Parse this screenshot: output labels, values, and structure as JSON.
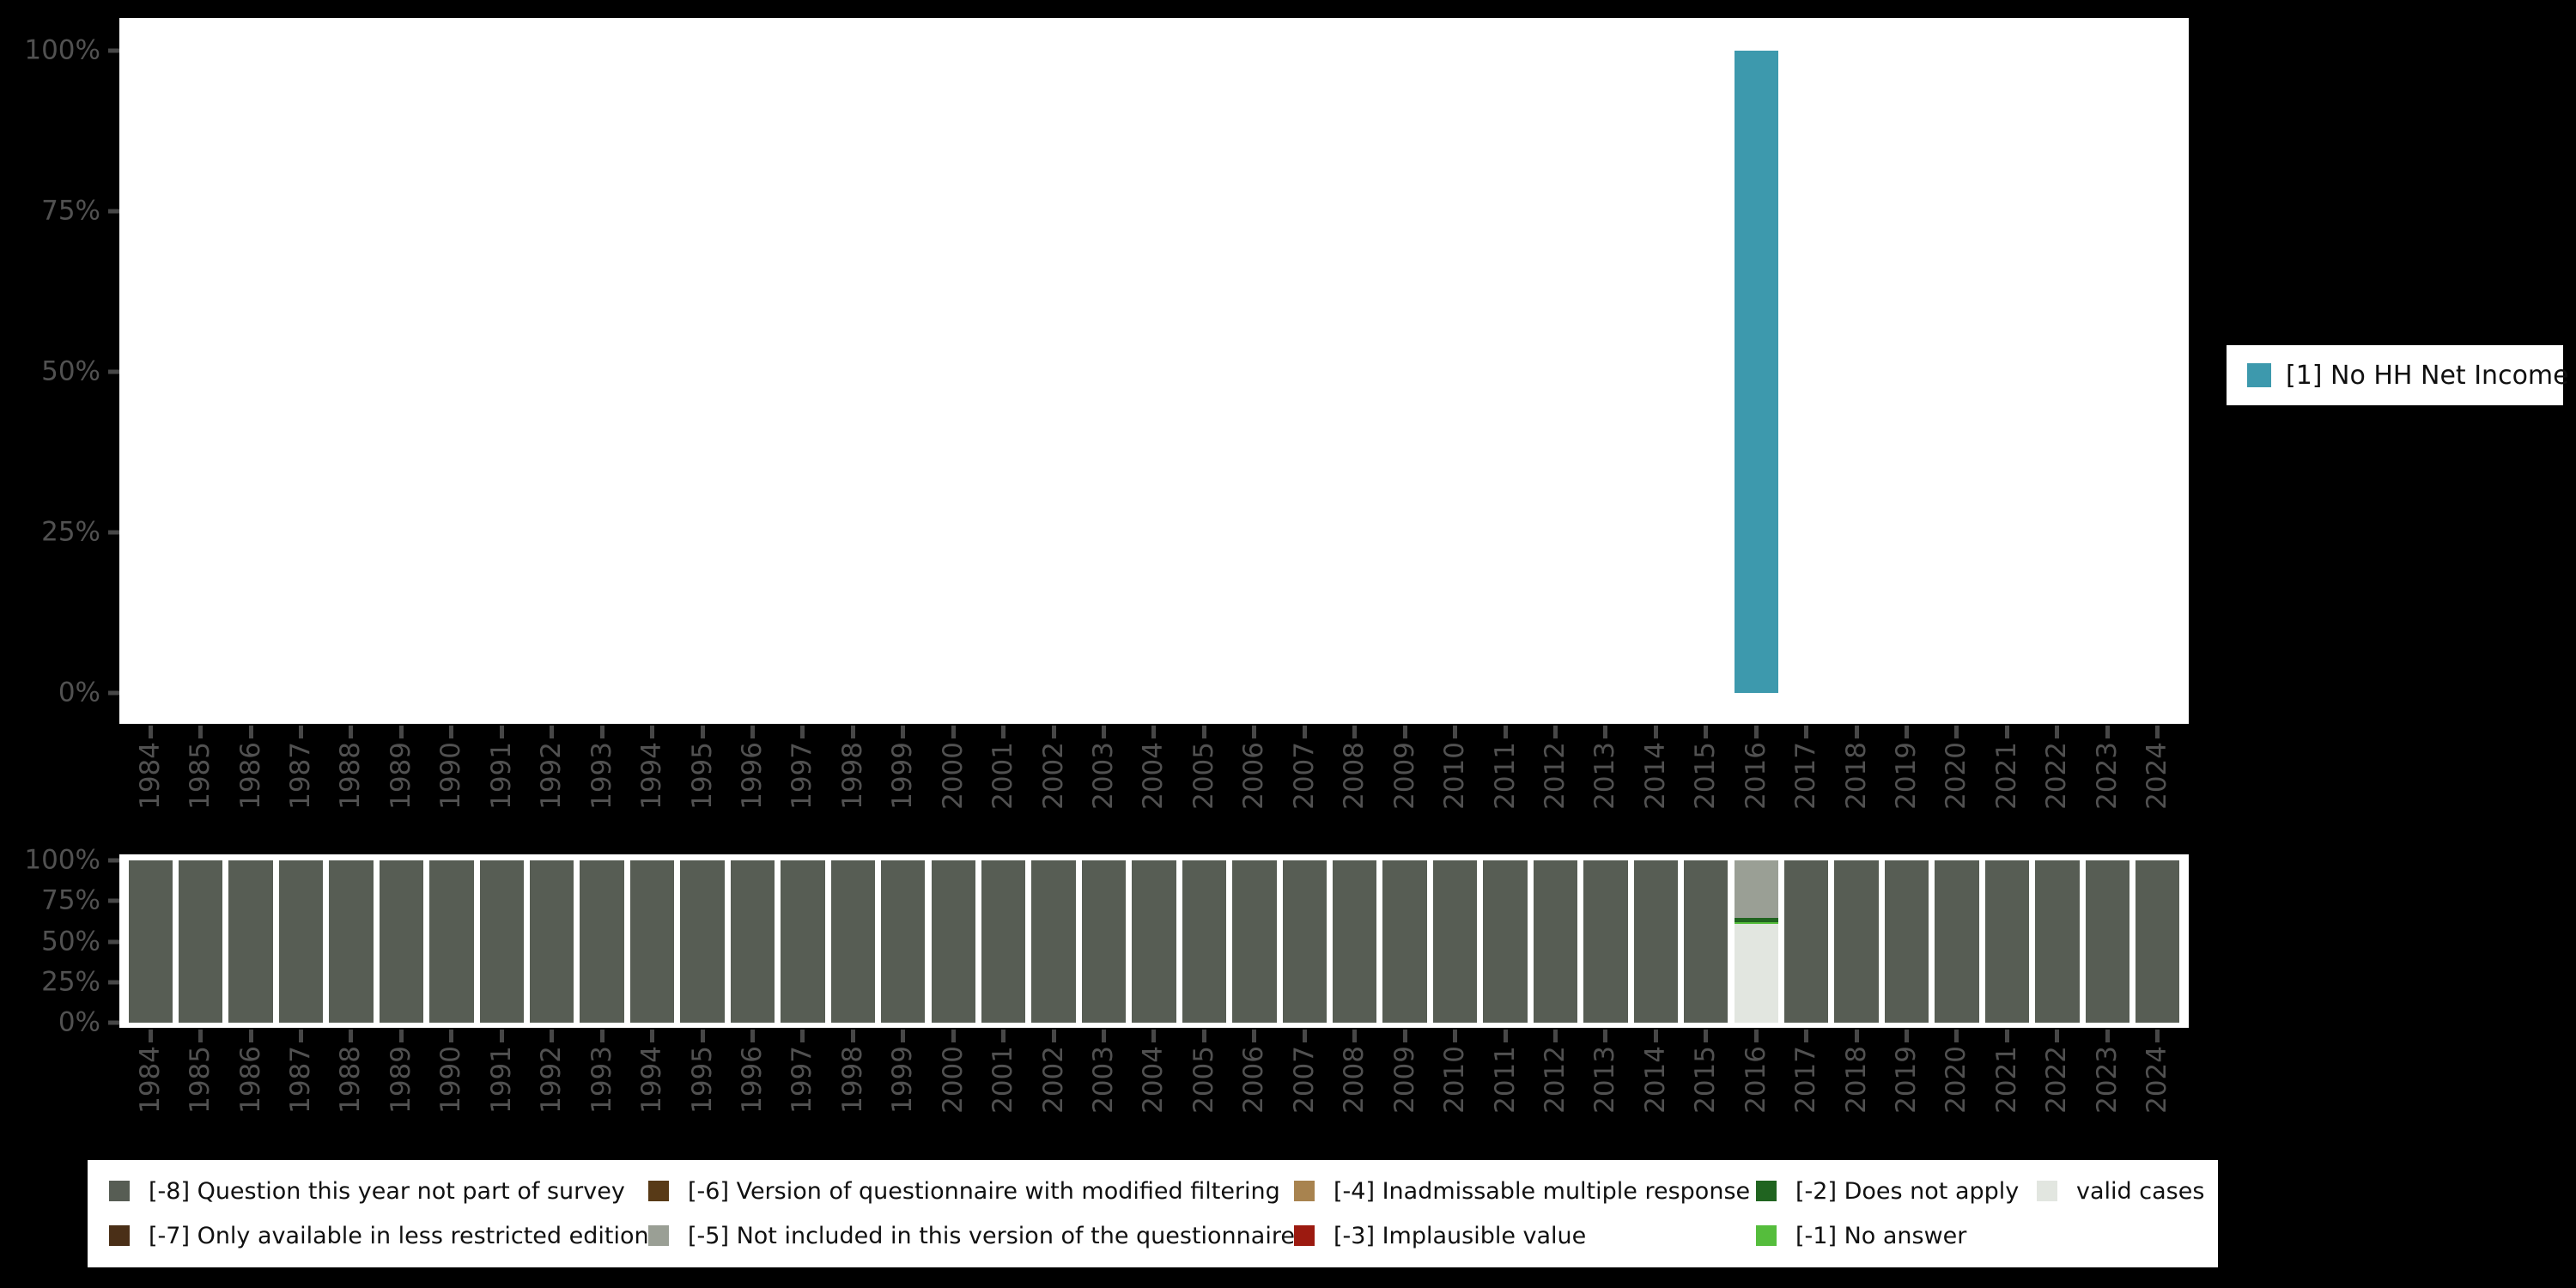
{
  "style": {
    "background": "#000000",
    "plot_background": "#ffffff",
    "axis_text_color": "#515151",
    "tick_mark_color": "#474747",
    "legend_background": "#ffffff",
    "legend_text_color": "#101010"
  },
  "right_legend": {
    "label": "[1] No HH Net Income",
    "color": "#3d99ad"
  },
  "missing_legend": {
    "rows": [
      [
        {
          "label": "[-8] Question this year not part of survey",
          "color": "#575d54"
        },
        {
          "label": "[-6] Version of questionnaire with modified filtering",
          "color": "#583a17"
        },
        {
          "label": "[-4] Inadmissable multiple response",
          "color": "#a8834f"
        },
        {
          "label": "[-2] Does not apply",
          "color": "#206420"
        },
        {
          "label": "valid cases",
          "color": "#e2e6e0"
        }
      ],
      [
        {
          "label": "[-7] Only available in less restricted edition",
          "color": "#4a2f17"
        },
        {
          "label": "[-5] Not included in this version of the questionnaire",
          "color": "#9a9f95"
        },
        {
          "label": "[-3] Implausible value",
          "color": "#9c1a10"
        },
        {
          "label": "[-1] No answer",
          "color": "#55bd3c"
        }
      ]
    ]
  },
  "chart_data": [
    {
      "type": "bar",
      "title": "",
      "xlabel": "",
      "ylabel": "",
      "x": [
        "1984",
        "1985",
        "1986",
        "1987",
        "1988",
        "1989",
        "1990",
        "1991",
        "1992",
        "1993",
        "1994",
        "1995",
        "1996",
        "1997",
        "1998",
        "1999",
        "2000",
        "2001",
        "2002",
        "2003",
        "2004",
        "2005",
        "2006",
        "2007",
        "2008",
        "2009",
        "2010",
        "2011",
        "2012",
        "2013",
        "2014",
        "2015",
        "2016",
        "2017",
        "2018",
        "2019",
        "2020",
        "2021",
        "2022",
        "2023",
        "2024"
      ],
      "x_label_rotation": 90,
      "ylim": [
        0,
        100
      ],
      "yticks": [
        "100%",
        "75%",
        "50%",
        "25%",
        "0%"
      ],
      "grid": false,
      "legend_position": "right",
      "series": [
        {
          "name": "[1] No HH Net Income",
          "color": "#3d99ad",
          "values": [
            0,
            0,
            0,
            0,
            0,
            0,
            0,
            0,
            0,
            0,
            0,
            0,
            0,
            0,
            0,
            0,
            0,
            0,
            0,
            0,
            0,
            0,
            0,
            0,
            0,
            0,
            0,
            0,
            0,
            0,
            0,
            0,
            100,
            0,
            0,
            0,
            0,
            0,
            0,
            0,
            0
          ]
        }
      ]
    },
    {
      "type": "bar",
      "subtype": "stacked-percent",
      "title": "",
      "xlabel": "",
      "ylabel": "",
      "x": [
        "1984",
        "1985",
        "1986",
        "1987",
        "1988",
        "1989",
        "1990",
        "1991",
        "1992",
        "1993",
        "1994",
        "1995",
        "1996",
        "1997",
        "1998",
        "1999",
        "2000",
        "2001",
        "2002",
        "2003",
        "2004",
        "2005",
        "2006",
        "2007",
        "2008",
        "2009",
        "2010",
        "2011",
        "2012",
        "2013",
        "2014",
        "2015",
        "2016",
        "2017",
        "2018",
        "2019",
        "2020",
        "2021",
        "2022",
        "2023",
        "2024"
      ],
      "x_label_rotation": 90,
      "ylim": [
        0,
        100
      ],
      "yticks": [
        "100%",
        "75%",
        "50%",
        "25%",
        "0%"
      ],
      "grid": false,
      "legend_position": "bottom",
      "series": [
        {
          "name": "[-8] Question this year not part of survey",
          "color": "#575d54",
          "values": [
            100,
            100,
            100,
            100,
            100,
            100,
            100,
            100,
            100,
            100,
            100,
            100,
            100,
            100,
            100,
            100,
            100,
            100,
            100,
            100,
            100,
            100,
            100,
            100,
            100,
            100,
            100,
            100,
            100,
            100,
            100,
            100,
            0,
            100,
            100,
            100,
            100,
            100,
            100,
            100,
            100
          ]
        },
        {
          "name": "[-5] Not included in this version of the questionnaire",
          "color": "#9a9f95",
          "values": [
            0,
            0,
            0,
            0,
            0,
            0,
            0,
            0,
            0,
            0,
            0,
            0,
            0,
            0,
            0,
            0,
            0,
            0,
            0,
            0,
            0,
            0,
            0,
            0,
            0,
            0,
            0,
            0,
            0,
            0,
            0,
            0,
            35.5,
            0,
            0,
            0,
            0,
            0,
            0,
            0,
            0
          ]
        },
        {
          "name": "[-2] Does not apply",
          "color": "#206420",
          "values": [
            0,
            0,
            0,
            0,
            0,
            0,
            0,
            0,
            0,
            0,
            0,
            0,
            0,
            0,
            0,
            0,
            0,
            0,
            0,
            0,
            0,
            0,
            0,
            0,
            0,
            0,
            0,
            0,
            0,
            0,
            0,
            0,
            2.4,
            0,
            0,
            0,
            0,
            0,
            0,
            0,
            0
          ]
        },
        {
          "name": "[-1] No answer",
          "color": "#55bd3c",
          "values": [
            0,
            0,
            0,
            0,
            0,
            0,
            0,
            0,
            0,
            0,
            0,
            0,
            0,
            0,
            0,
            0,
            0,
            0,
            0,
            0,
            0,
            0,
            0,
            0,
            0,
            0,
            0,
            0,
            0,
            0,
            0,
            0,
            1.3,
            0,
            0,
            0,
            0,
            0,
            0,
            0,
            0
          ]
        },
        {
          "name": "valid cases",
          "color": "#e2e6e0",
          "values": [
            0,
            0,
            0,
            0,
            0,
            0,
            0,
            0,
            0,
            0,
            0,
            0,
            0,
            0,
            0,
            0,
            0,
            0,
            0,
            0,
            0,
            0,
            0,
            0,
            0,
            0,
            0,
            0,
            0,
            0,
            0,
            0,
            60.8,
            0,
            0,
            0,
            0,
            0,
            0,
            0,
            0
          ]
        }
      ]
    }
  ]
}
